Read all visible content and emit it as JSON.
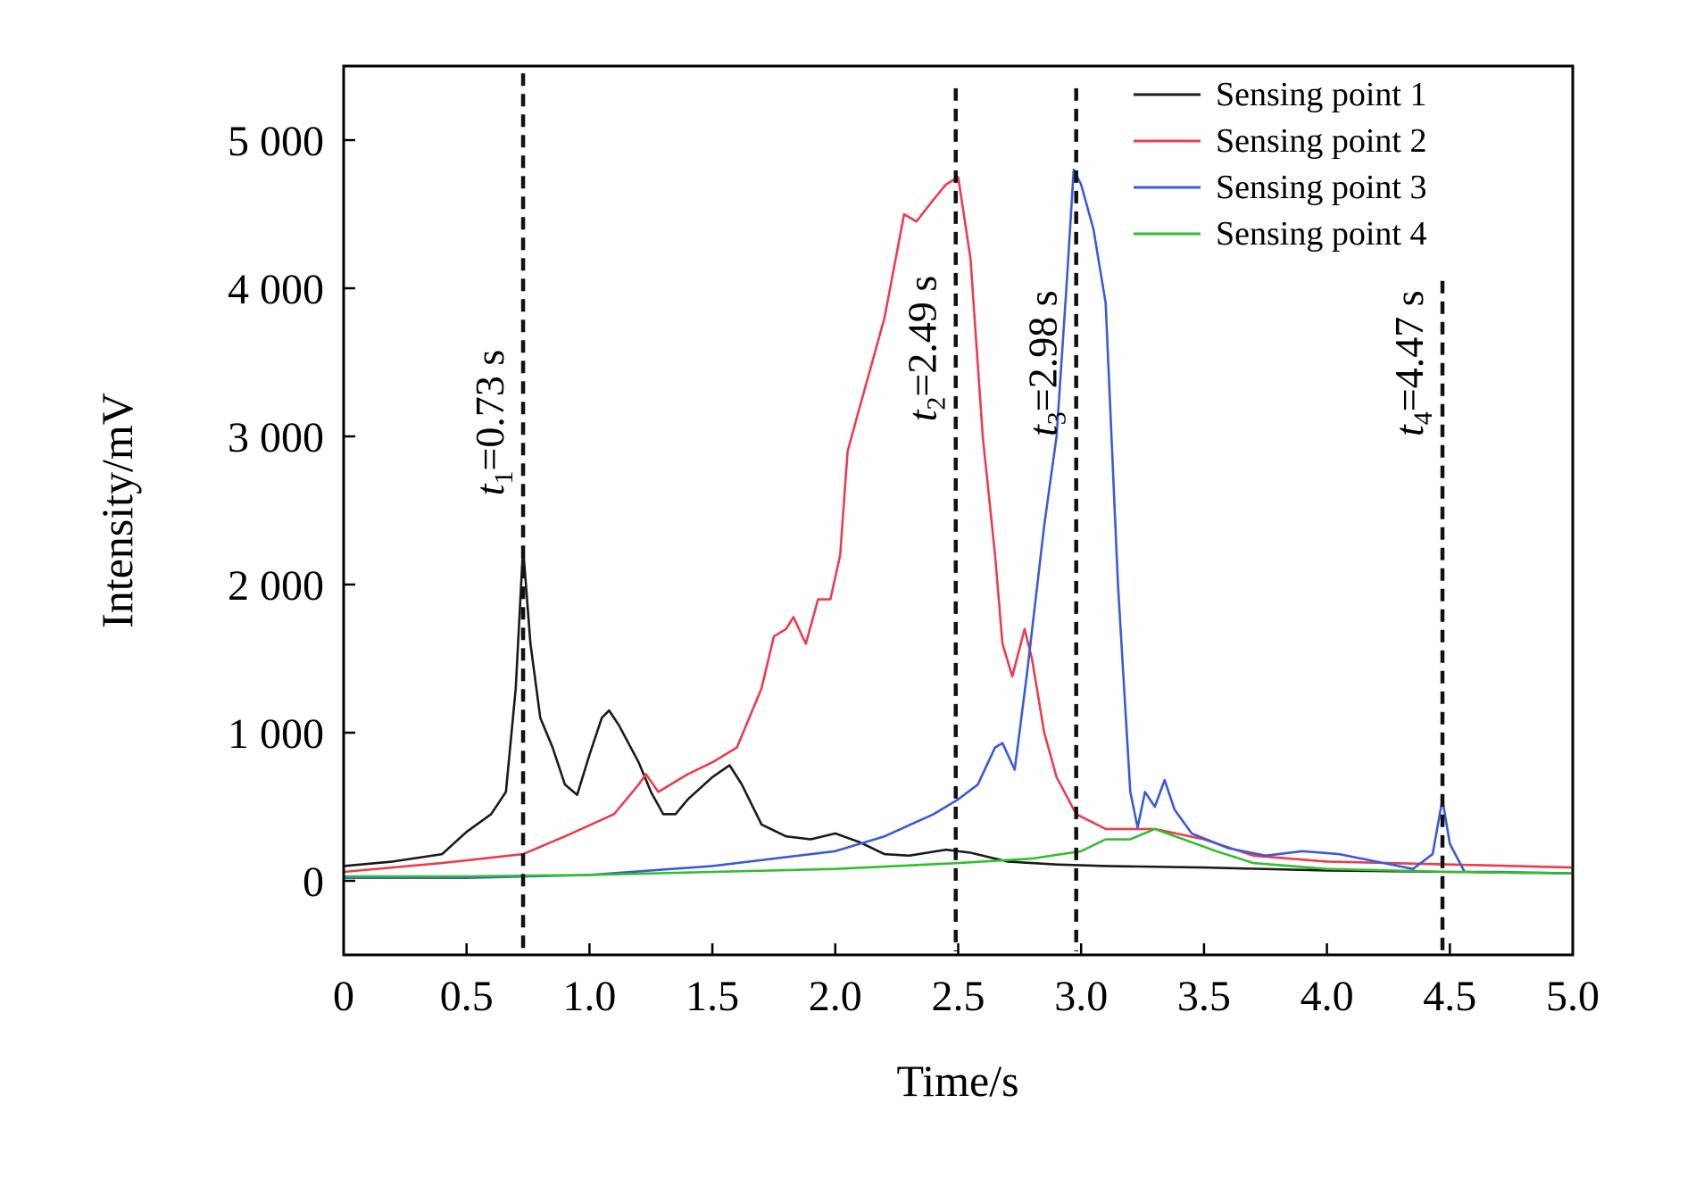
{
  "chart_data": {
    "type": "line",
    "xlabel": "Time/s",
    "ylabel": "Intensity/mV",
    "xlim": [
      0,
      5.0
    ],
    "ylim": [
      -500,
      5500
    ],
    "x_ticks": [
      0,
      0.5,
      1.0,
      1.5,
      2.0,
      2.5,
      3.0,
      3.5,
      4.0,
      4.5,
      5.0
    ],
    "x_tick_labels": [
      "0",
      "0.5",
      "1.0",
      "1.5",
      "2.0",
      "2.5",
      "3.0",
      "3.5",
      "4.0",
      "4.5",
      "5.0"
    ],
    "y_ticks": [
      0,
      1000,
      2000,
      3000,
      4000,
      5000
    ],
    "y_tick_labels": [
      "0",
      "1 000",
      "2 000",
      "3 000",
      "4 000",
      "5 000"
    ],
    "grid": false,
    "legend_position": "top-right",
    "series": [
      {
        "name": "Sensing point 1",
        "color": "#1a1a1a",
        "points": [
          [
            0,
            100
          ],
          [
            0.2,
            130
          ],
          [
            0.4,
            180
          ],
          [
            0.5,
            330
          ],
          [
            0.6,
            450
          ],
          [
            0.66,
            600
          ],
          [
            0.7,
            1300
          ],
          [
            0.73,
            2250
          ],
          [
            0.76,
            1600
          ],
          [
            0.8,
            1100
          ],
          [
            0.85,
            900
          ],
          [
            0.9,
            650
          ],
          [
            0.95,
            580
          ],
          [
            1.0,
            850
          ],
          [
            1.05,
            1100
          ],
          [
            1.08,
            1150
          ],
          [
            1.12,
            1050
          ],
          [
            1.2,
            800
          ],
          [
            1.25,
            600
          ],
          [
            1.3,
            450
          ],
          [
            1.35,
            450
          ],
          [
            1.4,
            550
          ],
          [
            1.5,
            700
          ],
          [
            1.57,
            780
          ],
          [
            1.62,
            650
          ],
          [
            1.7,
            380
          ],
          [
            1.8,
            300
          ],
          [
            1.9,
            280
          ],
          [
            2.0,
            320
          ],
          [
            2.1,
            260
          ],
          [
            2.2,
            180
          ],
          [
            2.3,
            170
          ],
          [
            2.45,
            210
          ],
          [
            2.55,
            190
          ],
          [
            2.7,
            130
          ],
          [
            2.9,
            110
          ],
          [
            3.1,
            100
          ],
          [
            3.5,
            90
          ],
          [
            4.0,
            70
          ],
          [
            4.5,
            60
          ],
          [
            5.0,
            50
          ]
        ]
      },
      {
        "name": "Sensing point 2",
        "color": "#ee3b4e",
        "points": [
          [
            0,
            60
          ],
          [
            0.4,
            120
          ],
          [
            0.73,
            180
          ],
          [
            0.9,
            300
          ],
          [
            1.1,
            450
          ],
          [
            1.2,
            650
          ],
          [
            1.23,
            720
          ],
          [
            1.28,
            600
          ],
          [
            1.4,
            720
          ],
          [
            1.5,
            800
          ],
          [
            1.6,
            900
          ],
          [
            1.7,
            1300
          ],
          [
            1.75,
            1650
          ],
          [
            1.8,
            1700
          ],
          [
            1.83,
            1780
          ],
          [
            1.88,
            1600
          ],
          [
            1.93,
            1900
          ],
          [
            1.98,
            1900
          ],
          [
            2.02,
            2200
          ],
          [
            2.05,
            2900
          ],
          [
            2.1,
            3200
          ],
          [
            2.15,
            3500
          ],
          [
            2.2,
            3800
          ],
          [
            2.28,
            4500
          ],
          [
            2.33,
            4450
          ],
          [
            2.4,
            4600
          ],
          [
            2.45,
            4700
          ],
          [
            2.5,
            4750
          ],
          [
            2.55,
            4200
          ],
          [
            2.6,
            3000
          ],
          [
            2.65,
            2200
          ],
          [
            2.68,
            1600
          ],
          [
            2.72,
            1380
          ],
          [
            2.77,
            1700
          ],
          [
            2.8,
            1500
          ],
          [
            2.85,
            1000
          ],
          [
            2.9,
            700
          ],
          [
            2.98,
            450
          ],
          [
            3.1,
            350
          ],
          [
            3.3,
            350
          ],
          [
            3.5,
            280
          ],
          [
            3.7,
            170
          ],
          [
            4.0,
            130
          ],
          [
            4.5,
            110
          ],
          [
            5.0,
            90
          ]
        ]
      },
      {
        "name": "Sensing point 3",
        "color": "#3b5ad8",
        "points": [
          [
            0,
            20
          ],
          [
            0.5,
            20
          ],
          [
            1.0,
            40
          ],
          [
            1.5,
            100
          ],
          [
            2.0,
            200
          ],
          [
            2.2,
            300
          ],
          [
            2.4,
            450
          ],
          [
            2.5,
            550
          ],
          [
            2.58,
            650
          ],
          [
            2.65,
            900
          ],
          [
            2.68,
            930
          ],
          [
            2.73,
            750
          ],
          [
            2.78,
            1400
          ],
          [
            2.85,
            2400
          ],
          [
            2.9,
            3000
          ],
          [
            2.94,
            4000
          ],
          [
            2.97,
            4800
          ],
          [
            3.0,
            4700
          ],
          [
            3.05,
            4400
          ],
          [
            3.1,
            3900
          ],
          [
            3.15,
            2000
          ],
          [
            3.2,
            600
          ],
          [
            3.23,
            360
          ],
          [
            3.26,
            600
          ],
          [
            3.3,
            500
          ],
          [
            3.34,
            680
          ],
          [
            3.38,
            480
          ],
          [
            3.45,
            320
          ],
          [
            3.6,
            220
          ],
          [
            3.75,
            170
          ],
          [
            3.9,
            200
          ],
          [
            4.05,
            180
          ],
          [
            4.2,
            130
          ],
          [
            4.35,
            80
          ],
          [
            4.43,
            180
          ],
          [
            4.47,
            550
          ],
          [
            4.5,
            250
          ],
          [
            4.56,
            60
          ],
          [
            4.7,
            60
          ],
          [
            5.0,
            50
          ]
        ]
      },
      {
        "name": "Sensing point 4",
        "color": "#2fbf2f",
        "points": [
          [
            0,
            30
          ],
          [
            0.5,
            30
          ],
          [
            1.0,
            40
          ],
          [
            1.5,
            60
          ],
          [
            2.0,
            80
          ],
          [
            2.5,
            120
          ],
          [
            2.8,
            150
          ],
          [
            3.0,
            200
          ],
          [
            3.1,
            280
          ],
          [
            3.2,
            280
          ],
          [
            3.3,
            350
          ],
          [
            3.35,
            320
          ],
          [
            3.45,
            260
          ],
          [
            3.55,
            200
          ],
          [
            3.7,
            120
          ],
          [
            4.0,
            80
          ],
          [
            4.5,
            60
          ],
          [
            5.0,
            50
          ]
        ]
      }
    ],
    "annotations": [
      {
        "x": 0.73,
        "main": "t",
        "sub": "1",
        "rest": "=0.73 s"
      },
      {
        "x": 2.49,
        "main": "t",
        "sub": "2",
        "rest": "=2.49 s"
      },
      {
        "x": 2.98,
        "main": "t",
        "sub": "3",
        "rest": "=2.98 s"
      },
      {
        "x": 4.47,
        "main": "t",
        "sub": "4",
        "rest": "=4.47 s"
      }
    ]
  }
}
